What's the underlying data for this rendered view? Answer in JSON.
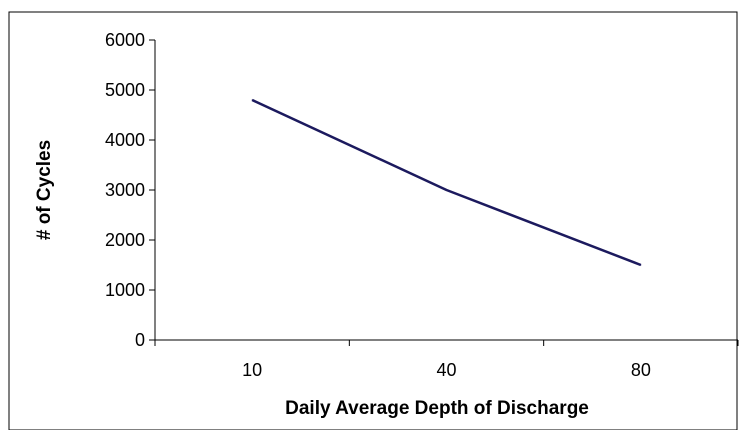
{
  "chart_data": {
    "type": "line",
    "title": "",
    "xlabel": "Daily Average Depth of Discharge",
    "ylabel": "# of Cycles",
    "categories": [
      "10",
      "40",
      "80"
    ],
    "series": [
      {
        "values": [
          4800,
          3000,
          1500
        ]
      }
    ],
    "ylim": [
      0,
      6000
    ],
    "yticks": [
      "0",
      "1000",
      "2000",
      "3000",
      "4000",
      "5000",
      "6000"
    ],
    "grid": false,
    "legend": "none",
    "colors": {
      "line": "#1c1a5e",
      "axis": "#000000",
      "frame": "#000000",
      "text": "#000000"
    }
  }
}
